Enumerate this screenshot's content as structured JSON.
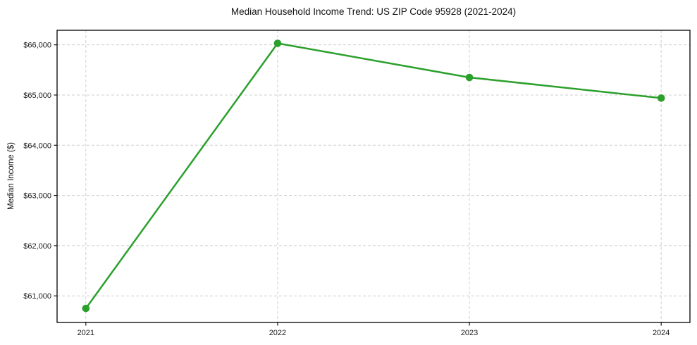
{
  "chart_data": {
    "type": "line",
    "title": "Median Household Income Trend: US ZIP Code 95928 (2021-2024)",
    "ylabel": "Median Income ($)",
    "xlabel": "",
    "x": [
      2021,
      2022,
      2023,
      2024
    ],
    "xticklabels": [
      "2021",
      "2022",
      "2023",
      "2024"
    ],
    "series": [
      {
        "values": [
          60750,
          66030,
          65350,
          64940
        ]
      }
    ],
    "yticks": [
      61000,
      62000,
      63000,
      64000,
      65000,
      66000
    ],
    "yticklabels": [
      "$61,000",
      "$62,000",
      "$63,000",
      "$64,000",
      "$65,000",
      "$66,000"
    ],
    "xlim": [
      2020.85,
      2024.15
    ],
    "ylim": [
      60470,
      66290
    ],
    "grid": true,
    "grid_line_style": "dashed",
    "legend_position": "none",
    "line_color": "#2ca02c",
    "marker": "circle",
    "grid_color": "#cfcfcf",
    "spine_color": "#000000",
    "background_color": "#ffffff",
    "text_color": "#1a1a1a"
  }
}
